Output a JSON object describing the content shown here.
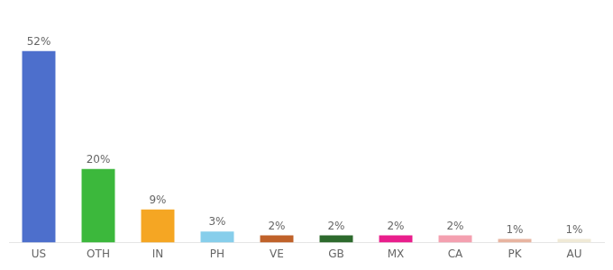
{
  "chart_data": {
    "type": "bar",
    "categories": [
      "US",
      "OTH",
      "IN",
      "PH",
      "VE",
      "GB",
      "MX",
      "CA",
      "PK",
      "AU"
    ],
    "values": [
      52,
      20,
      9,
      3,
      2,
      2,
      2,
      2,
      1,
      1
    ],
    "value_labels": [
      "52%",
      "20%",
      "9%",
      "3%",
      "2%",
      "2%",
      "2%",
      "2%",
      "1%",
      "1%"
    ],
    "colors": [
      "#4d6fcc",
      "#3cb83c",
      "#f5a623",
      "#87ceeb",
      "#c0622a",
      "#2d6a2d",
      "#e91e8c",
      "#f4a0b0",
      "#e8b4a0",
      "#f0ead6"
    ],
    "ylim": [
      0,
      60
    ],
    "grid": false,
    "data_labels": true,
    "tick_labels": "x"
  }
}
